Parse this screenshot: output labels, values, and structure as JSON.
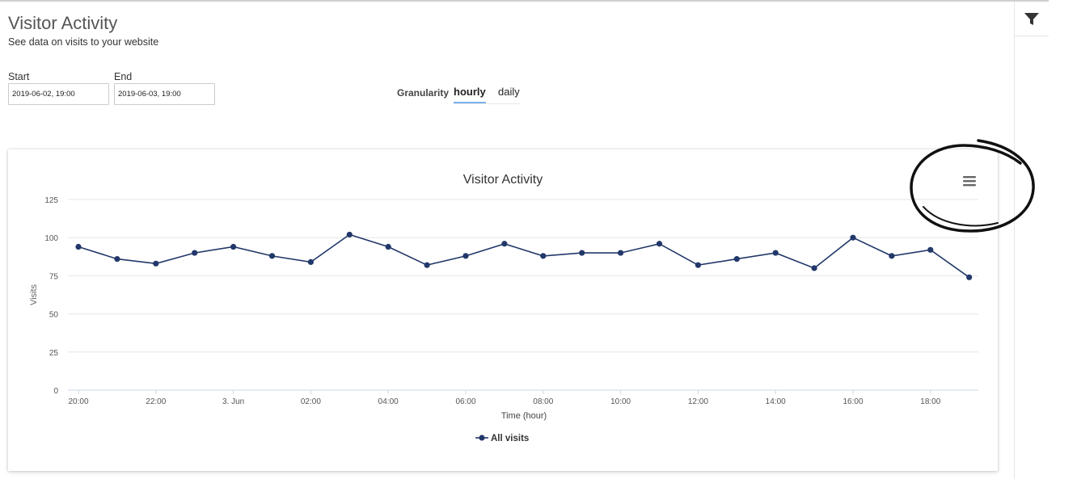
{
  "header": {
    "title": "Visitor Activity",
    "subtitle": "See data on visits to your website"
  },
  "filters": {
    "start_label": "Start",
    "start_value": "2019-06-02, 19:00",
    "end_label": "End",
    "end_value": "2019-06-03, 19:00",
    "granularity_label": "Granularity",
    "granularity_options": [
      "hourly",
      "daily"
    ],
    "granularity_selected": "hourly"
  },
  "sidebar": {
    "filter_icon": "filter-icon"
  },
  "chart_menu": {
    "icon": "hamburger-menu-icon"
  },
  "colors": {
    "series": "#22386a",
    "accent_tab": "#7fb1ee",
    "grid": "#e6e6e6"
  },
  "chart_data": {
    "type": "line",
    "title": "Visitor Activity",
    "xlabel": "Time (hour)",
    "ylabel": "Visits",
    "ylim": [
      0,
      125
    ],
    "yticks": [
      0,
      25,
      50,
      75,
      100,
      125
    ],
    "xtick_labels": [
      "20:00",
      "22:00",
      "3. Jun",
      "02:00",
      "04:00",
      "06:00",
      "08:00",
      "10:00",
      "12:00",
      "14:00",
      "16:00",
      "18:00"
    ],
    "x": [
      "20:00",
      "21:00",
      "22:00",
      "23:00",
      "00:00",
      "01:00",
      "02:00",
      "03:00",
      "04:00",
      "05:00",
      "06:00",
      "07:00",
      "08:00",
      "09:00",
      "10:00",
      "11:00",
      "12:00",
      "13:00",
      "14:00",
      "15:00",
      "16:00",
      "17:00",
      "18:00",
      "19:00"
    ],
    "series": [
      {
        "name": "All visits",
        "values": [
          94,
          86,
          83,
          90,
          94,
          88,
          84,
          102,
          94,
          82,
          88,
          96,
          88,
          90,
          90,
          96,
          82,
          86,
          90,
          80,
          100,
          88,
          92,
          74
        ]
      }
    ],
    "legend": "bottom-center",
    "grid": true
  }
}
